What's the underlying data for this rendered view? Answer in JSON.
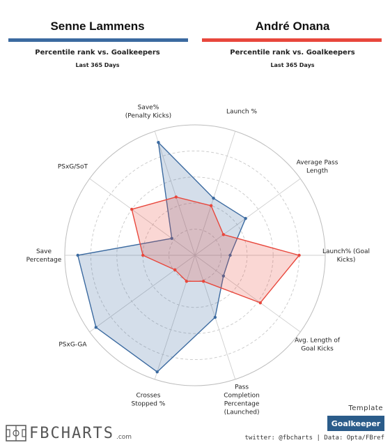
{
  "players": [
    {
      "name": "Senne Lammens",
      "color": "#3b6aa0"
    },
    {
      "name": "André Onana",
      "color": "#e8473c"
    }
  ],
  "subtitle": "Percentile rank vs. Goalkeepers",
  "period": "Last 365 Days",
  "template": {
    "label": "Template",
    "value": "Goalkeeper"
  },
  "brand": {
    "name": "FBCHARTS",
    "suffix": ".com"
  },
  "credits": "twitter: @fbcharts | Data: Opta/FBref",
  "chart_data": {
    "type": "radar",
    "scale": [
      0,
      100
    ],
    "rings": [
      20,
      40,
      60,
      80,
      100
    ],
    "axes": [
      "Launch %",
      "Average Pass\nLength",
      "Launch% (Goal\nKicks)",
      "Avg. Length of\nGoal Kicks",
      "Pass\nCompletion\nPercentage\n(Launched)",
      "Crosses\nStopped %",
      "PSxG-GA",
      "Save\nPercentage",
      "PSxG/SoT",
      "Save%\n(Penalty Kicks)"
    ],
    "series": [
      {
        "name": "Senne Lammens",
        "values": [
          46,
          48,
          27,
          27,
          50,
          94,
          94,
          90,
          22,
          91
        ]
      },
      {
        "name": "André Onana",
        "values": [
          40,
          27,
          80,
          62,
          21,
          21,
          19,
          40,
          60,
          47
        ]
      }
    ]
  }
}
